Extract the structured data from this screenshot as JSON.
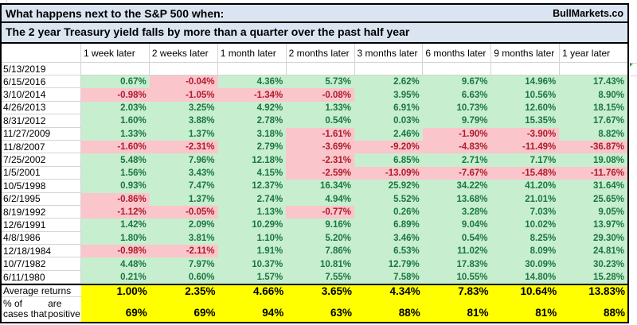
{
  "header": {
    "title_line1": "What happens next to the S&P 500 when:",
    "title_line2": "The 2 year Treasury yield falls by more than a quarter over the past half year",
    "brand": "BullMarkets.co"
  },
  "colors": {
    "title_bg": "#DBE5F1",
    "gridline": "#D4D4D4",
    "positive_fill": "#C7EECF",
    "positive_text": "#1B7742",
    "negative_fill": "#FAC5CB",
    "negative_text": "#AE1C2C",
    "summary_fill": "#FFFF00",
    "border": "#000000",
    "error_triangle": "#2E9E4F"
  },
  "chart_data": {
    "type": "table",
    "title": "What happens next to the S&P 500 when: The 2 year Treasury yield falls by more than a quarter over the past half year",
    "units": "percent",
    "columns": [
      "1 week later",
      "2 weeks later",
      "1 month later",
      "2 months later",
      "3 months later",
      "6 months later",
      "9 months later",
      "1 year later"
    ],
    "rows": [
      {
        "date": "5/13/2019",
        "values": [
          null,
          null,
          null,
          null,
          null,
          null,
          null,
          null
        ]
      },
      {
        "date": "6/15/2016",
        "values": [
          0.67,
          -0.04,
          4.36,
          5.73,
          2.62,
          9.67,
          14.96,
          17.43
        ]
      },
      {
        "date": "3/10/2014",
        "values": [
          -0.98,
          -1.05,
          -1.34,
          -0.08,
          3.95,
          6.63,
          10.56,
          8.9
        ]
      },
      {
        "date": "4/26/2013",
        "values": [
          2.03,
          3.25,
          4.92,
          1.33,
          6.91,
          10.73,
          12.6,
          18.15
        ]
      },
      {
        "date": "8/31/2012",
        "values": [
          1.6,
          3.88,
          2.78,
          0.54,
          0.03,
          9.79,
          15.35,
          17.67
        ]
      },
      {
        "date": "11/27/2009",
        "values": [
          1.33,
          1.37,
          3.18,
          -1.61,
          2.46,
          -1.9,
          -3.9,
          8.82
        ]
      },
      {
        "date": "11/8/2007",
        "values": [
          -1.6,
          -2.31,
          2.79,
          -3.69,
          -9.2,
          -4.83,
          -11.49,
          -36.87
        ]
      },
      {
        "date": "7/25/2002",
        "values": [
          5.48,
          7.96,
          12.18,
          -2.31,
          6.85,
          2.71,
          7.17,
          19.08
        ]
      },
      {
        "date": "1/5/2001",
        "values": [
          1.56,
          3.43,
          4.15,
          -2.59,
          -13.09,
          -7.67,
          -15.48,
          -11.76
        ]
      },
      {
        "date": "10/5/1998",
        "values": [
          0.93,
          7.47,
          12.37,
          16.34,
          25.92,
          34.22,
          41.2,
          31.64
        ]
      },
      {
        "date": "6/2/1995",
        "values": [
          -0.86,
          1.37,
          2.74,
          4.94,
          5.52,
          13.68,
          21.01,
          25.65
        ]
      },
      {
        "date": "8/19/1992",
        "values": [
          -1.12,
          -0.05,
          1.13,
          -0.77,
          0.26,
          3.28,
          7.03,
          9.05
        ]
      },
      {
        "date": "12/6/1991",
        "values": [
          1.42,
          2.09,
          10.29,
          9.16,
          6.89,
          9.04,
          10.02,
          13.97
        ]
      },
      {
        "date": "4/8/1986",
        "values": [
          1.8,
          3.81,
          1.1,
          5.2,
          3.46,
          0.54,
          8.25,
          29.3
        ]
      },
      {
        "date": "12/18/1984",
        "values": [
          -0.98,
          -2.11,
          1.91,
          7.86,
          6.53,
          11.02,
          8.09,
          24.81
        ]
      },
      {
        "date": "10/7/1982",
        "values": [
          4.48,
          7.97,
          10.37,
          10.81,
          12.79,
          17.83,
          30.09,
          30.23
        ]
      },
      {
        "date": "6/11/1980",
        "values": [
          0.21,
          0.6,
          1.57,
          7.55,
          7.58,
          10.55,
          14.8,
          15.28
        ]
      }
    ],
    "summary": [
      {
        "label": "Average returns",
        "label_lines": [
          "Average returns"
        ],
        "values": [
          1.0,
          2.35,
          4.66,
          3.65,
          4.34,
          7.83,
          10.64,
          13.83
        ],
        "format": "0.00%"
      },
      {
        "label": "% of cases that are positive",
        "label_lines": [
          "% of cases that",
          "are positive"
        ],
        "values": [
          69,
          69,
          94,
          63,
          88,
          81,
          81,
          88
        ],
        "format": "0%"
      }
    ]
  }
}
